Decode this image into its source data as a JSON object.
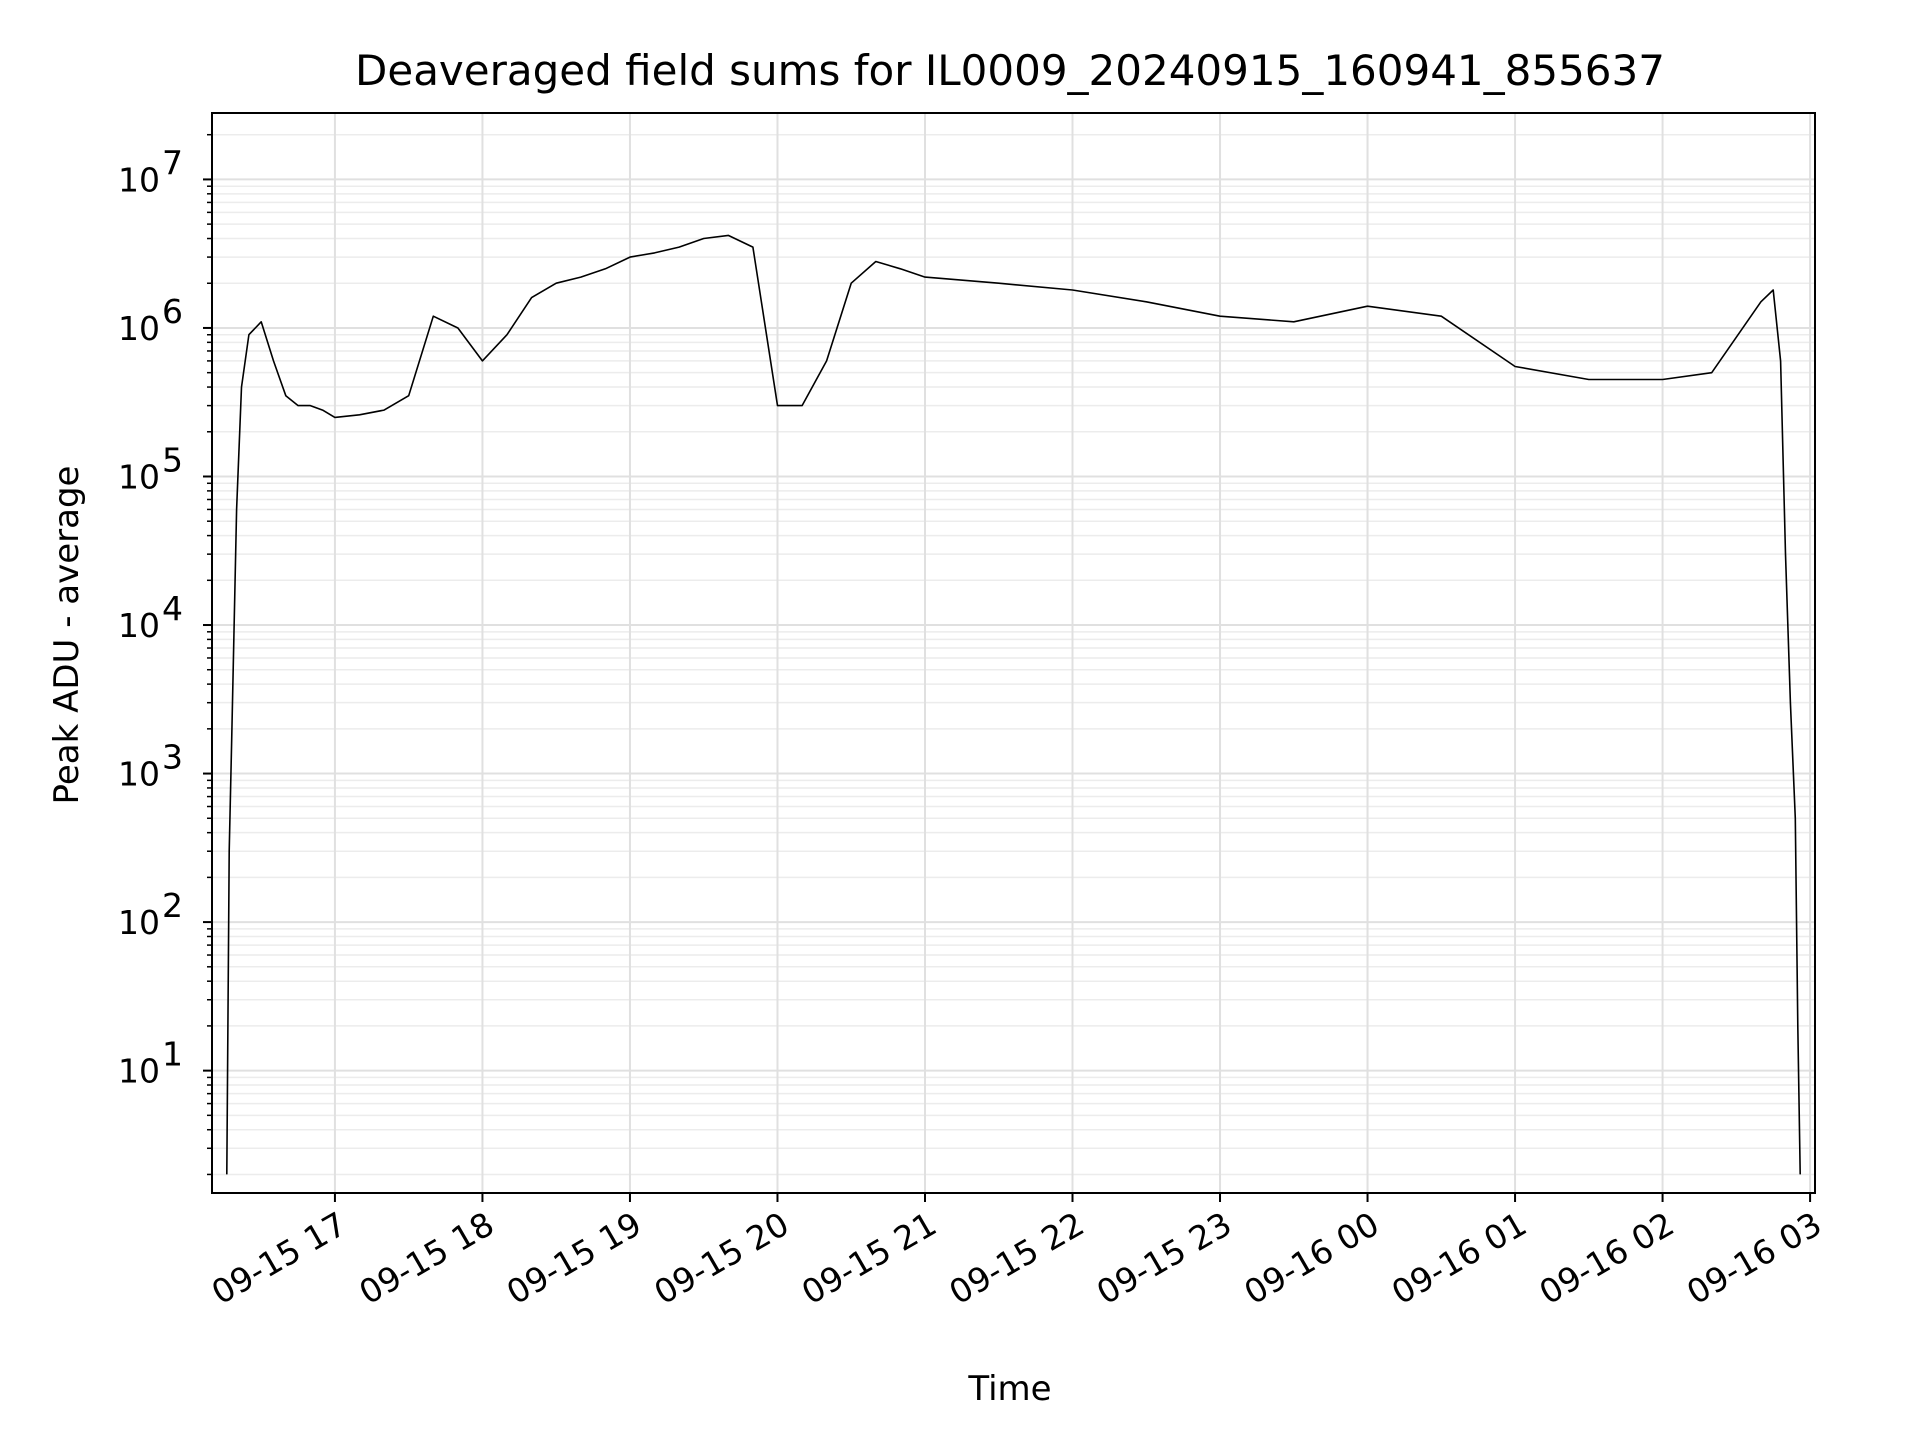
{
  "chart_data": {
    "type": "line",
    "title": "Deaveraged field sums for IL0009_20240915_160941_855637",
    "xlabel": "Time",
    "ylabel": "Peak ADU - average",
    "y_scale": "log",
    "ylim": [
      1.5,
      28000000
    ],
    "xlim": [
      "2024-09-15 16:10",
      "2024-09-16 03:02"
    ],
    "grid": true,
    "line_color": "#000000",
    "x_ticks": [
      {
        "t": "2024-09-15 17:00",
        "label": "09-15 17"
      },
      {
        "t": "2024-09-15 18:00",
        "label": "09-15 18"
      },
      {
        "t": "2024-09-15 19:00",
        "label": "09-15 19"
      },
      {
        "t": "2024-09-15 20:00",
        "label": "09-15 20"
      },
      {
        "t": "2024-09-15 21:00",
        "label": "09-15 21"
      },
      {
        "t": "2024-09-15 22:00",
        "label": "09-15 22"
      },
      {
        "t": "2024-09-15 23:00",
        "label": "09-15 23"
      },
      {
        "t": "2024-09-16 00:00",
        "label": "09-16 00"
      },
      {
        "t": "2024-09-16 01:00",
        "label": "09-16 01"
      },
      {
        "t": "2024-09-16 02:00",
        "label": "09-16 02"
      },
      {
        "t": "2024-09-16 03:00",
        "label": "09-16 03"
      }
    ],
    "y_ticks": [
      {
        "value": 10,
        "base": "10",
        "exp": "1"
      },
      {
        "value": 100,
        "base": "10",
        "exp": "2"
      },
      {
        "value": 1000,
        "base": "10",
        "exp": "3"
      },
      {
        "value": 10000,
        "base": "10",
        "exp": "4"
      },
      {
        "value": 100000,
        "base": "10",
        "exp": "5"
      },
      {
        "value": 1000000,
        "base": "10",
        "exp": "6"
      },
      {
        "value": 10000000,
        "base": "10",
        "exp": "7"
      }
    ],
    "series": [
      {
        "x": [
          "2024-09-15 16:16",
          "2024-09-15 16:17",
          "2024-09-15 16:18",
          "2024-09-15 16:20",
          "2024-09-15 16:22",
          "2024-09-15 16:25",
          "2024-09-15 16:30",
          "2024-09-15 16:35",
          "2024-09-15 16:40",
          "2024-09-15 16:45",
          "2024-09-15 16:50",
          "2024-09-15 16:55",
          "2024-09-15 17:00",
          "2024-09-15 17:10",
          "2024-09-15 17:20",
          "2024-09-15 17:30",
          "2024-09-15 17:40",
          "2024-09-15 17:50",
          "2024-09-15 18:00",
          "2024-09-15 18:10",
          "2024-09-15 18:20",
          "2024-09-15 18:30",
          "2024-09-15 18:40",
          "2024-09-15 18:50",
          "2024-09-15 19:00",
          "2024-09-15 19:10",
          "2024-09-15 19:20",
          "2024-09-15 19:30",
          "2024-09-15 19:40",
          "2024-09-15 19:50",
          "2024-09-15 20:00",
          "2024-09-15 20:10",
          "2024-09-15 20:20",
          "2024-09-15 20:30",
          "2024-09-15 20:40",
          "2024-09-15 20:50",
          "2024-09-15 21:00",
          "2024-09-15 21:30",
          "2024-09-15 22:00",
          "2024-09-15 22:30",
          "2024-09-15 23:00",
          "2024-09-15 23:30",
          "2024-09-16 00:00",
          "2024-09-16 00:30",
          "2024-09-16 01:00",
          "2024-09-16 01:30",
          "2024-09-16 02:00",
          "2024-09-16 02:20",
          "2024-09-16 02:40",
          "2024-09-16 02:45",
          "2024-09-16 02:48",
          "2024-09-16 02:50",
          "2024-09-16 02:52",
          "2024-09-16 02:54",
          "2024-09-16 02:55",
          "2024-09-16 02:56"
        ],
        "y": [
          2,
          300,
          1700,
          60000,
          400000,
          900000,
          1100000,
          600000,
          350000,
          300000,
          300000,
          280000,
          250000,
          260000,
          280000,
          350000,
          1200000,
          1000000,
          600000,
          900000,
          1600000,
          2000000,
          2200000,
          2500000,
          3000000,
          3200000,
          3500000,
          4000000,
          4200000,
          3500000,
          300000,
          300000,
          600000,
          2000000,
          2800000,
          2500000,
          2200000,
          2000000,
          1800000,
          1500000,
          1200000,
          1100000,
          1400000,
          1200000,
          550000,
          450000,
          450000,
          500000,
          1500000,
          1800000,
          600000,
          30000,
          3000,
          500,
          20,
          2
        ]
      }
    ]
  }
}
